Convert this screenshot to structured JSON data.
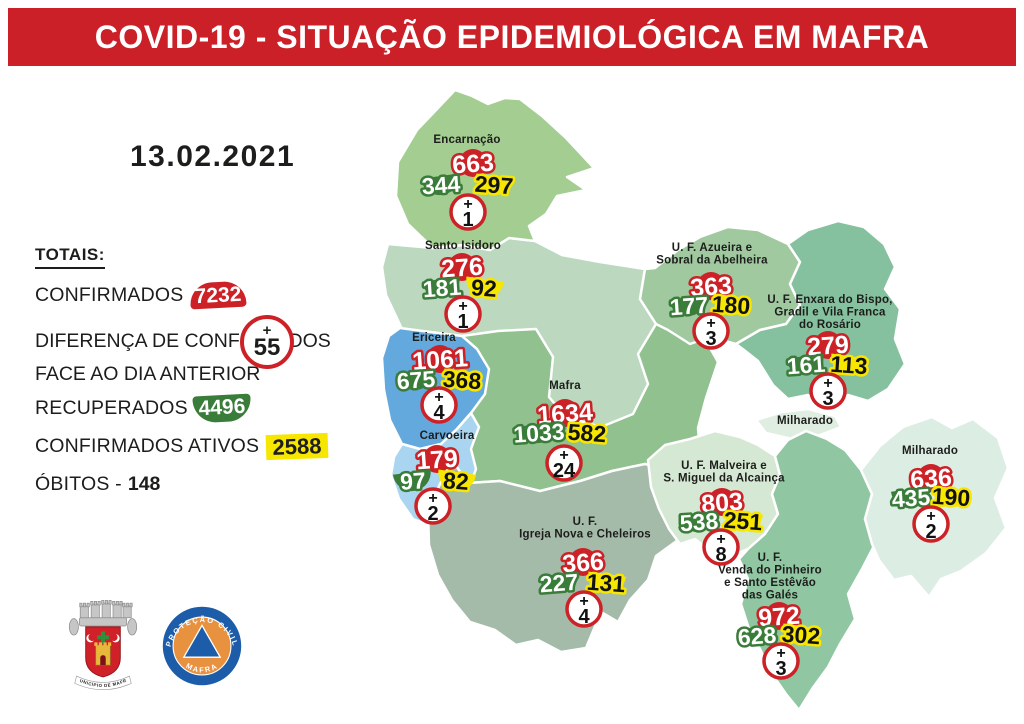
{
  "header": {
    "title": "COVID-19 - SITUAÇÃO EPIDEMIOLÓGICA EM MAFRA"
  },
  "date_label": "13.02.2021",
  "signs": {
    "plus": "+"
  },
  "totals": {
    "heading": "TOTAIS:",
    "confirmed_label": "CONFIRMADOS",
    "confirmed_value": "7232",
    "diff_label_line1": "DIFERENÇA DE CONFIRMADOS",
    "diff_label_line2": "FACE AO DIA ANTERIOR",
    "diff_value": "55",
    "recovered_label": "RECUPERADOS",
    "recovered_value": "4496",
    "active_label": "CONFIRMADOS ATIVOS",
    "active_value": "2588",
    "deaths_label": "ÓBITOS -",
    "deaths_value": "148"
  },
  "legend_semantics": {
    "red_badge": "confirmados",
    "green_badge": "recuperados",
    "yellow_badge": "confirmados ativos",
    "circle_badge": "novos face ao dia anterior"
  },
  "parishes": [
    {
      "name": "Encarnação",
      "confirmed": "663",
      "recovered": "344",
      "active": "297",
      "new_cases": "1"
    },
    {
      "name": "Santo Isidoro",
      "confirmed": "276",
      "recovered": "181",
      "active": "92",
      "new_cases": "1"
    },
    {
      "name": "Ericeira",
      "confirmed": "1061",
      "recovered": "675",
      "active": "368",
      "new_cases": "4"
    },
    {
      "name": "Carvoeira",
      "confirmed": "179",
      "recovered": "97",
      "active": "82",
      "new_cases": "2"
    },
    {
      "name": "Mafra",
      "confirmed": "1634",
      "recovered": "1033",
      "active": "582",
      "new_cases": "24"
    },
    {
      "name": "U. F.\nIgreja Nova e Cheleiros",
      "confirmed": "366",
      "recovered": "227",
      "active": "131",
      "new_cases": "4"
    },
    {
      "name": "U. F. Azueira e\nSobral da Abelheira",
      "confirmed": "363",
      "recovered": "177",
      "active": "180",
      "new_cases": "3"
    },
    {
      "name": "U. F. Enxara do Bispo,\nGradil e Vila Franca\ndo Rosário",
      "confirmed": "279",
      "recovered": "161",
      "active": "113",
      "new_cases": "3"
    },
    {
      "name": "U. F. Malveira e\nS. Miguel da Alcainça",
      "confirmed": "803",
      "recovered": "538",
      "active": "251",
      "new_cases": "8"
    },
    {
      "name": "U. F.\nVenda do Pinheiro\ne Santo Estêvão\ndas Galés",
      "confirmed": "972",
      "recovered": "628",
      "active": "302",
      "new_cases": "3"
    },
    {
      "name": "Milharado",
      "confirmed": "636",
      "recovered": "435",
      "active": "190",
      "new_cases": "2"
    }
  ],
  "map": {
    "exclave_label": "Milharado"
  },
  "logos": {
    "municipality_ribbon": "MUNICÍPIO DE MAFRA",
    "civil_top": "PROTEÇÃO CIVIL",
    "civil_bottom": "MAFRA"
  },
  "colors": {
    "banner_red": "#cb2027",
    "badge_red": "#cc2127",
    "badge_green": "#3a7c39",
    "badge_yellow": "#f7e600",
    "text_dark": "#1d1d1b",
    "fill_encarnacao": "#a4cd92",
    "fill_santo_isidoro": "#bcd9c0",
    "fill_ericeira": "#64a9de",
    "fill_carvoeira": "#aad5f0",
    "fill_mafra": "#90c18e",
    "fill_igreja": "#a5bba9",
    "fill_azueira": "#a0c9a0",
    "fill_enxara": "#85c19e",
    "fill_malveira": "#d5e8d3",
    "fill_venda": "#90c6a1",
    "fill_milharado": "#dcede4",
    "fill_exclave": "#dfeee0",
    "logo_blue": "#1c5ca8",
    "logo_orange": "#e89240",
    "crest_red": "#d02028",
    "crest_yellow": "#e8b83a",
    "crest_green": "#2f8f3a",
    "crest_gray": "#c6c6c6"
  }
}
